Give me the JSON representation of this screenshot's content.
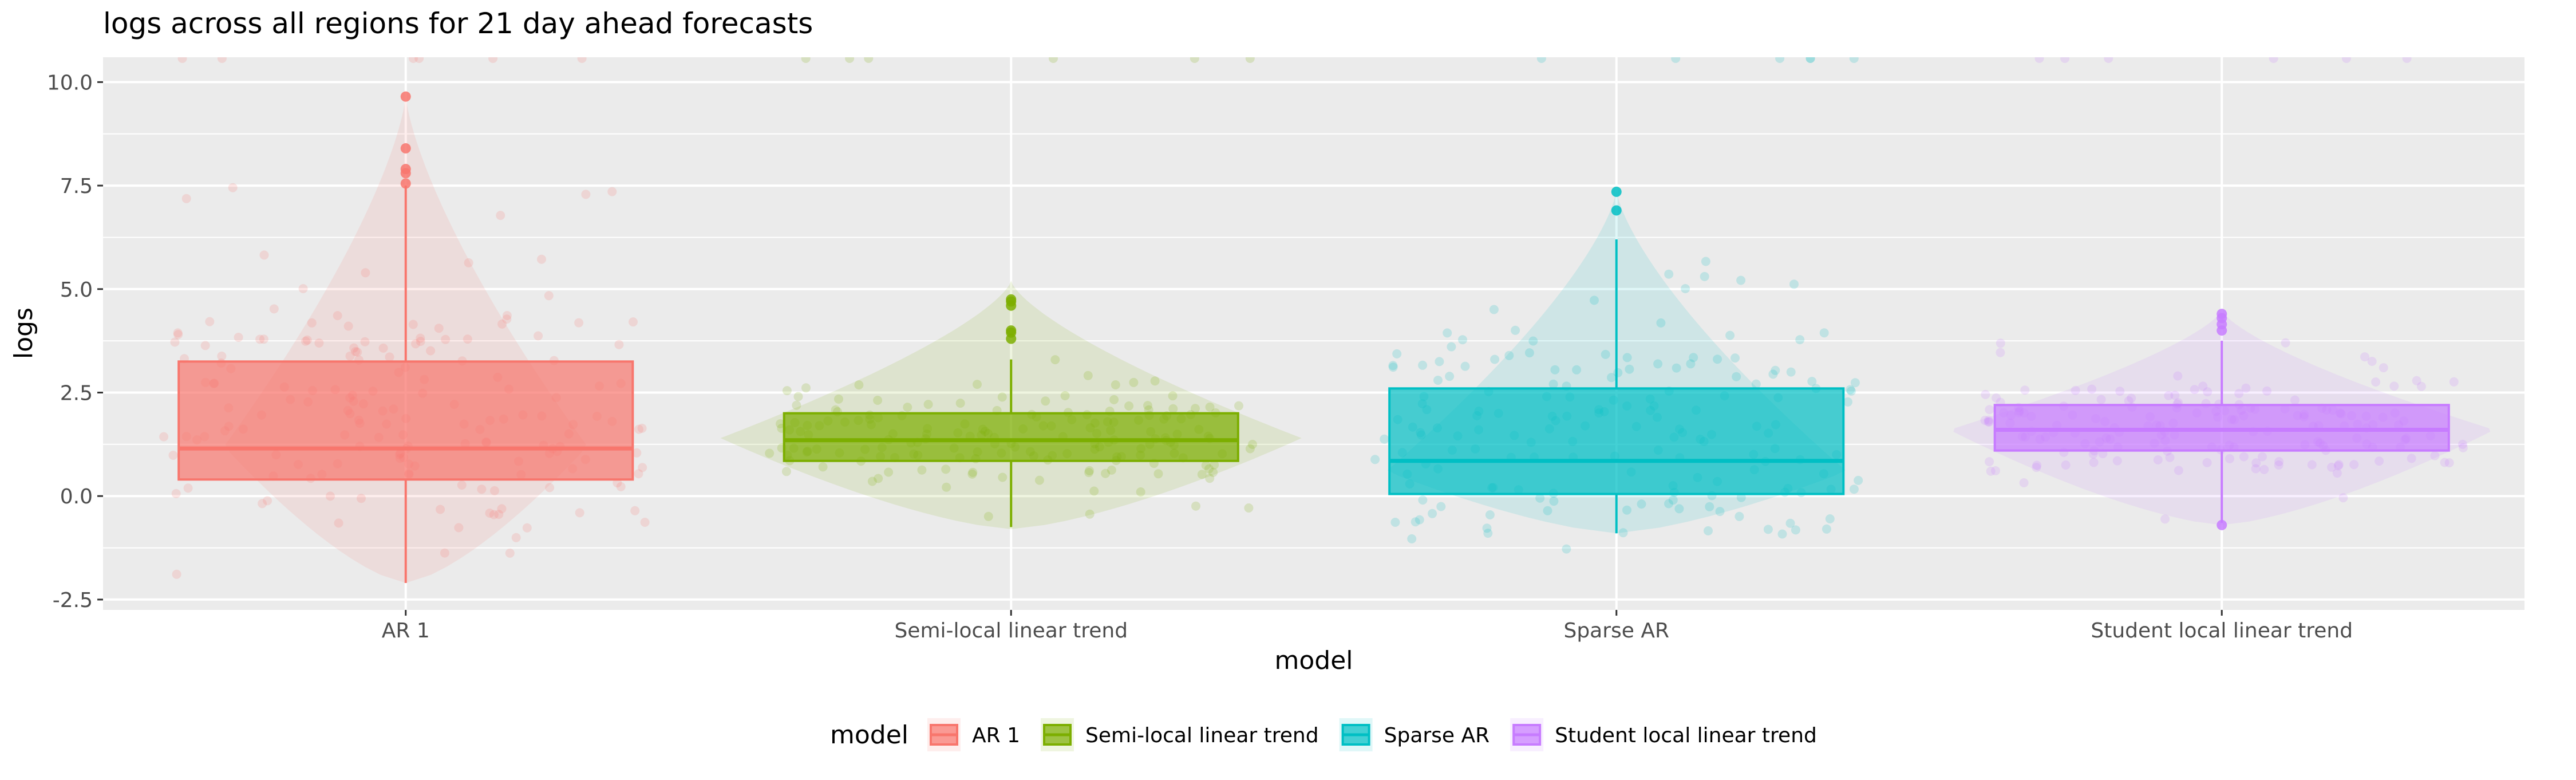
{
  "chart_data": {
    "type": "boxplot",
    "title": "logs across all regions for 21 day ahead forecasts",
    "xlabel": "model",
    "ylabel": "logs",
    "ylim": [
      -2.75,
      10.6
    ],
    "yticks": [
      -2.5,
      0.0,
      2.5,
      5.0,
      7.5,
      10.0
    ],
    "ytick_labels": [
      "-2.5",
      "0.0",
      "2.5",
      "5.0",
      "7.5",
      "10.0"
    ],
    "grid": true,
    "legend": {
      "title": "model",
      "position": "bottom"
    },
    "categories": [
      "AR 1",
      "Semi-local linear trend",
      "Sparse AR",
      "Student local linear trend"
    ],
    "series": [
      {
        "name": "AR 1",
        "color": "#F8766D",
        "q1": 0.4,
        "median": 1.15,
        "q3": 3.25,
        "whisker_low": -2.1,
        "whisker_high": 7.5,
        "outliers": [
          7.55,
          7.8,
          7.9,
          8.4,
          9.65
        ],
        "violin_min": -2.1,
        "violin_max": 9.7,
        "violin_mode": 1.2,
        "violin_width": 0.3,
        "jitter_seed": 11
      },
      {
        "name": "Semi-local linear trend",
        "color": "#7CAE00",
        "q1": 0.85,
        "median": 1.35,
        "q3": 2.0,
        "whisker_low": -0.75,
        "whisker_high": 3.3,
        "outliers": [
          3.8,
          3.95,
          4.0,
          4.6,
          4.7,
          4.75
        ],
        "violin_min": -0.8,
        "violin_max": 5.2,
        "violin_mode": 1.4,
        "violin_width": 0.48,
        "jitter_seed": 23
      },
      {
        "name": "Sparse AR",
        "color": "#00BFC4",
        "q1": 0.05,
        "median": 0.85,
        "q3": 2.6,
        "whisker_low": -0.9,
        "whisker_high": 6.2,
        "outliers": [
          6.9,
          7.35
        ],
        "violin_min": -0.9,
        "violin_max": 7.4,
        "violin_mode": 0.6,
        "violin_width": 0.38,
        "jitter_seed": 37
      },
      {
        "name": "Student local linear trend",
        "color": "#C77CFF",
        "q1": 1.1,
        "median": 1.6,
        "q3": 2.2,
        "whisker_low": -0.65,
        "whisker_high": 3.75,
        "outliers": [
          -0.7,
          4.0,
          4.15,
          4.3,
          4.4
        ],
        "violin_min": -0.7,
        "violin_max": 4.5,
        "violin_mode": 1.6,
        "violin_width": 0.45,
        "jitter_seed": 53
      }
    ]
  }
}
